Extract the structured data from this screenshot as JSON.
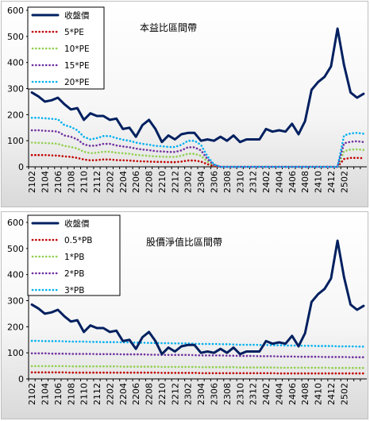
{
  "chart_data": [
    {
      "type": "line",
      "title": "本益比區間帶",
      "ylim": [
        0,
        600
      ],
      "yticks": [
        "0",
        "100",
        "200",
        "300",
        "400",
        "500",
        "600"
      ],
      "x_tick_labels": [
        "2102",
        "2104",
        "2106",
        "2108",
        "2110",
        "2112",
        "2202",
        "2204",
        "2206",
        "2208",
        "2210",
        "2212",
        "2302",
        "2304",
        "2306",
        "2308",
        "2310",
        "2312",
        "2402",
        "2404",
        "2406",
        "2408",
        "2410",
        "2412",
        "2502"
      ],
      "grid": false,
      "legend_position": "top-left",
      "series": [
        {
          "name": "收盤價",
          "color": "#002060",
          "style": "solid",
          "values": [
            285,
            270,
            250,
            255,
            265,
            240,
            220,
            225,
            180,
            205,
            195,
            195,
            180,
            185,
            145,
            150,
            115,
            160,
            180,
            145,
            95,
            120,
            105,
            125,
            130,
            130,
            100,
            105,
            100,
            115,
            100,
            120,
            95,
            105,
            105,
            105,
            145,
            135,
            140,
            135,
            165,
            125,
            175,
            295,
            325,
            345,
            385,
            530,
            390,
            285,
            265,
            280
          ]
        },
        {
          "name": "5*PE",
          "color": "#c00000",
          "style": "dotted",
          "values": [
            45,
            45,
            45,
            44,
            43,
            40,
            38,
            34,
            28,
            25,
            26,
            28,
            28,
            26,
            25,
            24,
            22,
            21,
            20,
            19,
            19,
            18,
            18,
            20,
            24,
            24,
            20,
            10,
            2,
            0,
            0,
            0,
            0,
            0,
            0,
            0,
            0,
            0,
            0,
            0,
            0,
            0,
            0,
            0,
            0,
            0,
            0,
            0,
            30,
            34,
            34,
            33
          ]
        },
        {
          "name": "10*PE",
          "color": "#92d050",
          "style": "dotted",
          "values": [
            93,
            92,
            91,
            90,
            88,
            80,
            76,
            70,
            58,
            52,
            54,
            58,
            58,
            54,
            52,
            50,
            46,
            44,
            42,
            40,
            39,
            38,
            38,
            42,
            50,
            50,
            42,
            20,
            5,
            0,
            0,
            0,
            0,
            0,
            0,
            0,
            0,
            0,
            0,
            0,
            0,
            0,
            0,
            0,
            0,
            0,
            0,
            0,
            60,
            66,
            67,
            65
          ]
        },
        {
          "name": "15*PE",
          "color": "#7030a0",
          "style": "dotted",
          "values": [
            140,
            140,
            138,
            137,
            135,
            120,
            115,
            105,
            86,
            80,
            82,
            88,
            88,
            82,
            78,
            75,
            70,
            66,
            64,
            60,
            59,
            57,
            57,
            63,
            75,
            75,
            63,
            30,
            7,
            0,
            0,
            0,
            0,
            0,
            0,
            0,
            0,
            0,
            0,
            0,
            0,
            0,
            0,
            0,
            0,
            0,
            0,
            0,
            90,
            96,
            98,
            95
          ]
        },
        {
          "name": "20*PE",
          "color": "#00b0f0",
          "style": "dotted",
          "values": [
            188,
            188,
            186,
            184,
            182,
            160,
            153,
            140,
            115,
            105,
            110,
            118,
            118,
            110,
            104,
            100,
            93,
            88,
            85,
            80,
            79,
            76,
            76,
            84,
            100,
            100,
            84,
            40,
            9,
            0,
            0,
            0,
            0,
            0,
            0,
            0,
            0,
            0,
            0,
            0,
            0,
            0,
            0,
            0,
            0,
            0,
            0,
            0,
            120,
            128,
            130,
            127
          ]
        }
      ]
    },
    {
      "type": "line",
      "title": "股價淨值比區間帶",
      "ylim": [
        0,
        600
      ],
      "yticks": [
        "0",
        "100",
        "200",
        "300",
        "400",
        "500",
        "600"
      ],
      "x_tick_labels": [
        "2102",
        "2104",
        "2106",
        "2108",
        "2110",
        "2112",
        "2202",
        "2204",
        "2206",
        "2208",
        "2210",
        "2212",
        "2302",
        "2304",
        "2306",
        "2308",
        "2310",
        "2312",
        "2402",
        "2404",
        "2406",
        "2408",
        "2410",
        "2412",
        "2502"
      ],
      "grid": false,
      "legend_position": "top-left",
      "series": [
        {
          "name": "收盤價",
          "color": "#002060",
          "style": "solid",
          "values": [
            285,
            270,
            250,
            255,
            265,
            240,
            220,
            225,
            180,
            205,
            195,
            195,
            180,
            185,
            145,
            150,
            115,
            160,
            180,
            145,
            95,
            120,
            105,
            125,
            130,
            130,
            100,
            105,
            100,
            115,
            100,
            120,
            95,
            105,
            105,
            105,
            145,
            135,
            140,
            135,
            165,
            125,
            175,
            295,
            325,
            345,
            385,
            530,
            390,
            285,
            265,
            280
          ]
        },
        {
          "name": "0.5*PB",
          "color": "#c00000",
          "style": "dotted",
          "values": [
            25,
            25,
            25,
            25,
            25,
            25,
            24,
            24,
            24,
            24,
            24,
            24,
            24,
            24,
            24,
            24,
            24,
            24,
            24,
            24,
            23,
            23,
            23,
            23,
            23,
            23,
            22,
            22,
            22,
            22,
            22,
            22,
            22,
            22,
            22,
            22,
            22,
            22,
            21,
            21,
            21,
            21,
            21,
            21,
            21,
            21,
            21,
            21,
            21,
            21,
            21,
            21
          ]
        },
        {
          "name": "1*PB",
          "color": "#92d050",
          "style": "dotted",
          "values": [
            49,
            49,
            49,
            49,
            49,
            49,
            48,
            48,
            48,
            48,
            48,
            48,
            48,
            48,
            47,
            47,
            47,
            47,
            47,
            47,
            46,
            46,
            46,
            46,
            46,
            46,
            45,
            45,
            45,
            45,
            45,
            45,
            44,
            44,
            44,
            44,
            44,
            44,
            43,
            43,
            43,
            43,
            43,
            43,
            43,
            43,
            42,
            42,
            42,
            42,
            42,
            42
          ]
        },
        {
          "name": "2*PB",
          "color": "#7030a0",
          "style": "dotted",
          "values": [
            98,
            98,
            98,
            97,
            97,
            97,
            96,
            96,
            96,
            96,
            95,
            95,
            95,
            95,
            94,
            94,
            94,
            94,
            93,
            93,
            92,
            92,
            92,
            92,
            92,
            91,
            90,
            90,
            90,
            90,
            89,
            89,
            88,
            88,
            88,
            87,
            87,
            87,
            86,
            86,
            86,
            85,
            85,
            85,
            85,
            84,
            84,
            84,
            84,
            83,
            83,
            83
          ]
        },
        {
          "name": "3*PB",
          "color": "#00b0f0",
          "style": "dotted",
          "values": [
            146,
            146,
            145,
            145,
            145,
            144,
            143,
            143,
            143,
            142,
            142,
            141,
            141,
            141,
            140,
            140,
            139,
            139,
            138,
            138,
            137,
            137,
            136,
            136,
            136,
            135,
            134,
            134,
            134,
            133,
            133,
            132,
            131,
            131,
            131,
            130,
            130,
            129,
            129,
            128,
            128,
            128,
            127,
            127,
            126,
            126,
            126,
            125,
            125,
            125,
            124,
            124
          ]
        }
      ]
    }
  ]
}
